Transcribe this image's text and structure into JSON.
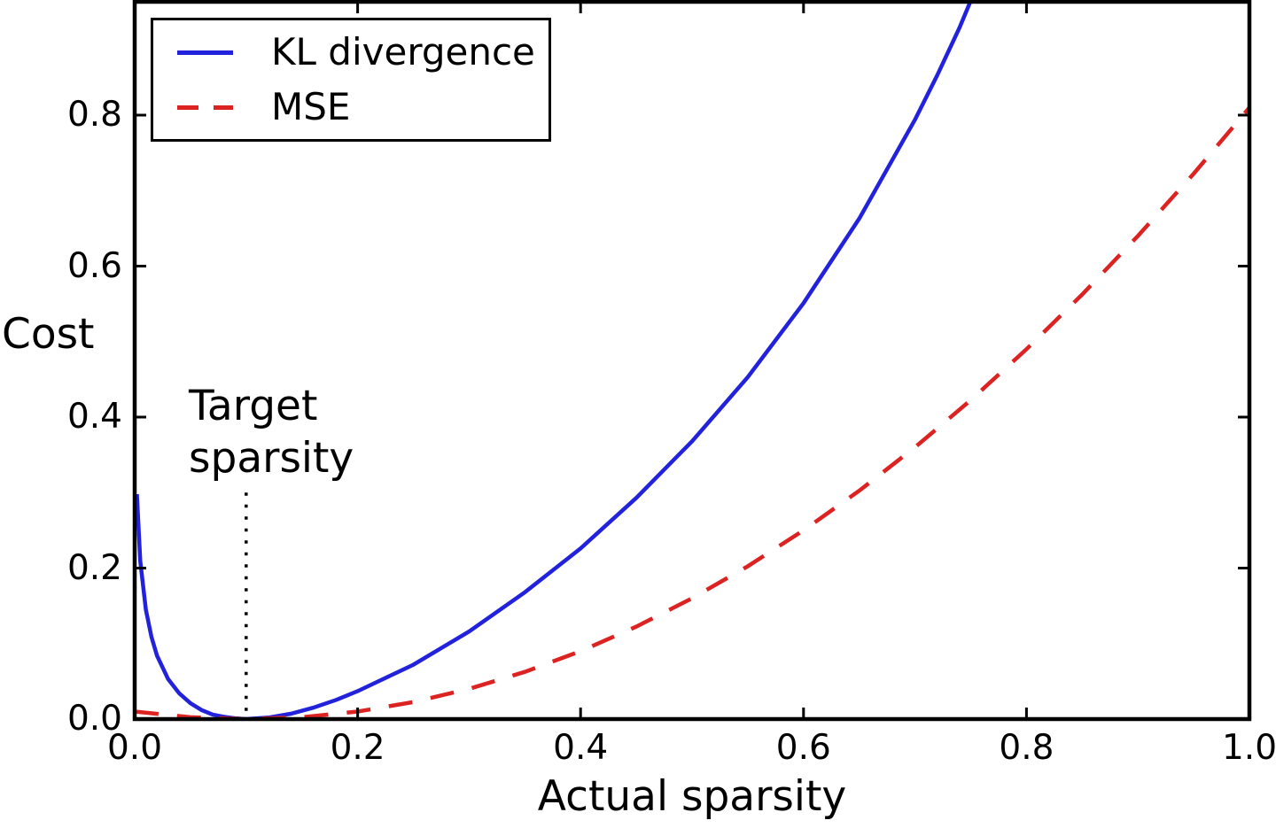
{
  "figure": {
    "background": "#ffffff",
    "axis_color": "#000000"
  },
  "chart_data": {
    "type": "line",
    "title": "",
    "xlabel": "Actual sparsity",
    "ylabel": "Cost",
    "xlim": [
      0.0,
      1.0
    ],
    "ylim": [
      0.0,
      0.95
    ],
    "grid": false,
    "xticks": {
      "values": [
        0.0,
        0.2,
        0.4,
        0.6,
        0.8,
        1.0
      ],
      "labels": [
        "0.0",
        "0.2",
        "0.4",
        "0.6",
        "0.8",
        "1.0"
      ]
    },
    "yticks": {
      "values": [
        0.0,
        0.2,
        0.4,
        0.6,
        0.8
      ],
      "labels": [
        "0.0",
        "0.2",
        "0.4",
        "0.6",
        "0.8"
      ]
    },
    "legend": {
      "position": "upper left",
      "entries": [
        {
          "label": "KL divergence",
          "style": "solid",
          "color": "#2222dd"
        },
        {
          "label": "MSE",
          "style": "dashed",
          "color": "#dd2222"
        }
      ]
    },
    "annotation": {
      "lines": [
        "Target",
        "sparsity"
      ],
      "x": 0.1,
      "line_style": "dotted",
      "line_color": "#000000",
      "line_top_value": 0.3
    },
    "series": [
      {
        "name": "KL divergence",
        "color": "#2222dd",
        "style": "solid",
        "x": [
          0.002,
          0.005,
          0.01,
          0.015,
          0.02,
          0.03,
          0.04,
          0.05,
          0.06,
          0.07,
          0.08,
          0.09,
          0.1,
          0.11,
          0.12,
          0.14,
          0.16,
          0.18,
          0.2,
          0.25,
          0.3,
          0.35,
          0.4,
          0.45,
          0.5,
          0.55,
          0.6,
          0.65,
          0.7,
          0.72,
          0.74,
          0.76
        ],
        "y": [
          0.298,
          0.209,
          0.145,
          0.109,
          0.084,
          0.053,
          0.034,
          0.021,
          0.012,
          0.006,
          0.003,
          0.001,
          0.0,
          0.001,
          0.002,
          0.007,
          0.015,
          0.025,
          0.037,
          0.072,
          0.116,
          0.168,
          0.226,
          0.293,
          0.368,
          0.453,
          0.551,
          0.663,
          0.794,
          0.853,
          0.916,
          0.987
        ]
      },
      {
        "name": "MSE",
        "color": "#dd2222",
        "style": "dashed",
        "x": [
          0.0,
          0.05,
          0.1,
          0.15,
          0.2,
          0.25,
          0.3,
          0.35,
          0.4,
          0.45,
          0.5,
          0.55,
          0.6,
          0.65,
          0.7,
          0.75,
          0.8,
          0.85,
          0.9,
          0.95,
          1.0
        ],
        "y": [
          0.01,
          0.0025,
          0.0,
          0.0025,
          0.01,
          0.0225,
          0.04,
          0.0625,
          0.09,
          0.1225,
          0.16,
          0.2025,
          0.25,
          0.3025,
          0.36,
          0.4225,
          0.49,
          0.5625,
          0.64,
          0.7225,
          0.81
        ]
      }
    ]
  }
}
